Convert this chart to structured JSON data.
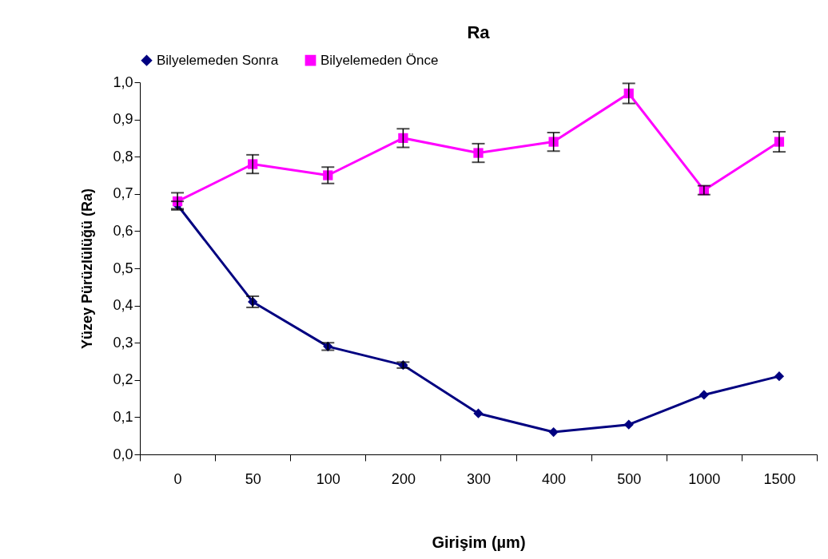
{
  "chart_data": {
    "type": "line",
    "title": "Ra",
    "xlabel": "Girişim (µm)",
    "ylabel": "Yüzey Pürüzlülüğü (Ra)",
    "categories": [
      "0",
      "50",
      "100",
      "200",
      "300",
      "400",
      "500",
      "1000",
      "1500"
    ],
    "series": [
      {
        "name": "Bilyelemeden Sonra",
        "color": "#000080",
        "marker": "diamond",
        "values": [
          0.67,
          0.41,
          0.29,
          0.24,
          0.11,
          0.06,
          0.08,
          0.16,
          0.21
        ],
        "errors": [
          0.01,
          0.015,
          0.01,
          0.008,
          null,
          null,
          null,
          null,
          null
        ]
      },
      {
        "name": "Bilyelemeden Önce",
        "color": "#ff00ff",
        "marker": "square",
        "values": [
          0.68,
          0.78,
          0.75,
          0.85,
          0.81,
          0.84,
          0.97,
          0.71,
          0.84
        ],
        "errors": [
          0.023,
          0.025,
          0.022,
          0.025,
          0.025,
          0.025,
          0.027,
          0.012,
          0.027
        ]
      }
    ],
    "ylim": [
      0,
      1
    ],
    "yticks": [
      {
        "value": 0,
        "label": "0,0"
      },
      {
        "value": 0.1,
        "label": "0,1"
      },
      {
        "value": 0.2,
        "label": "0,2"
      },
      {
        "value": 0.3,
        "label": "0,3"
      },
      {
        "value": 0.4,
        "label": "0,4"
      },
      {
        "value": 0.5,
        "label": "0,5"
      },
      {
        "value": 0.6,
        "label": "0,6"
      },
      {
        "value": 0.7,
        "label": "0,7"
      },
      {
        "value": 0.8,
        "label": "0,8"
      },
      {
        "value": 0.9,
        "label": "0,9"
      },
      {
        "value": 1,
        "label": "1,0"
      }
    ],
    "grid": false,
    "legend": "top",
    "line_style": "solid"
  }
}
